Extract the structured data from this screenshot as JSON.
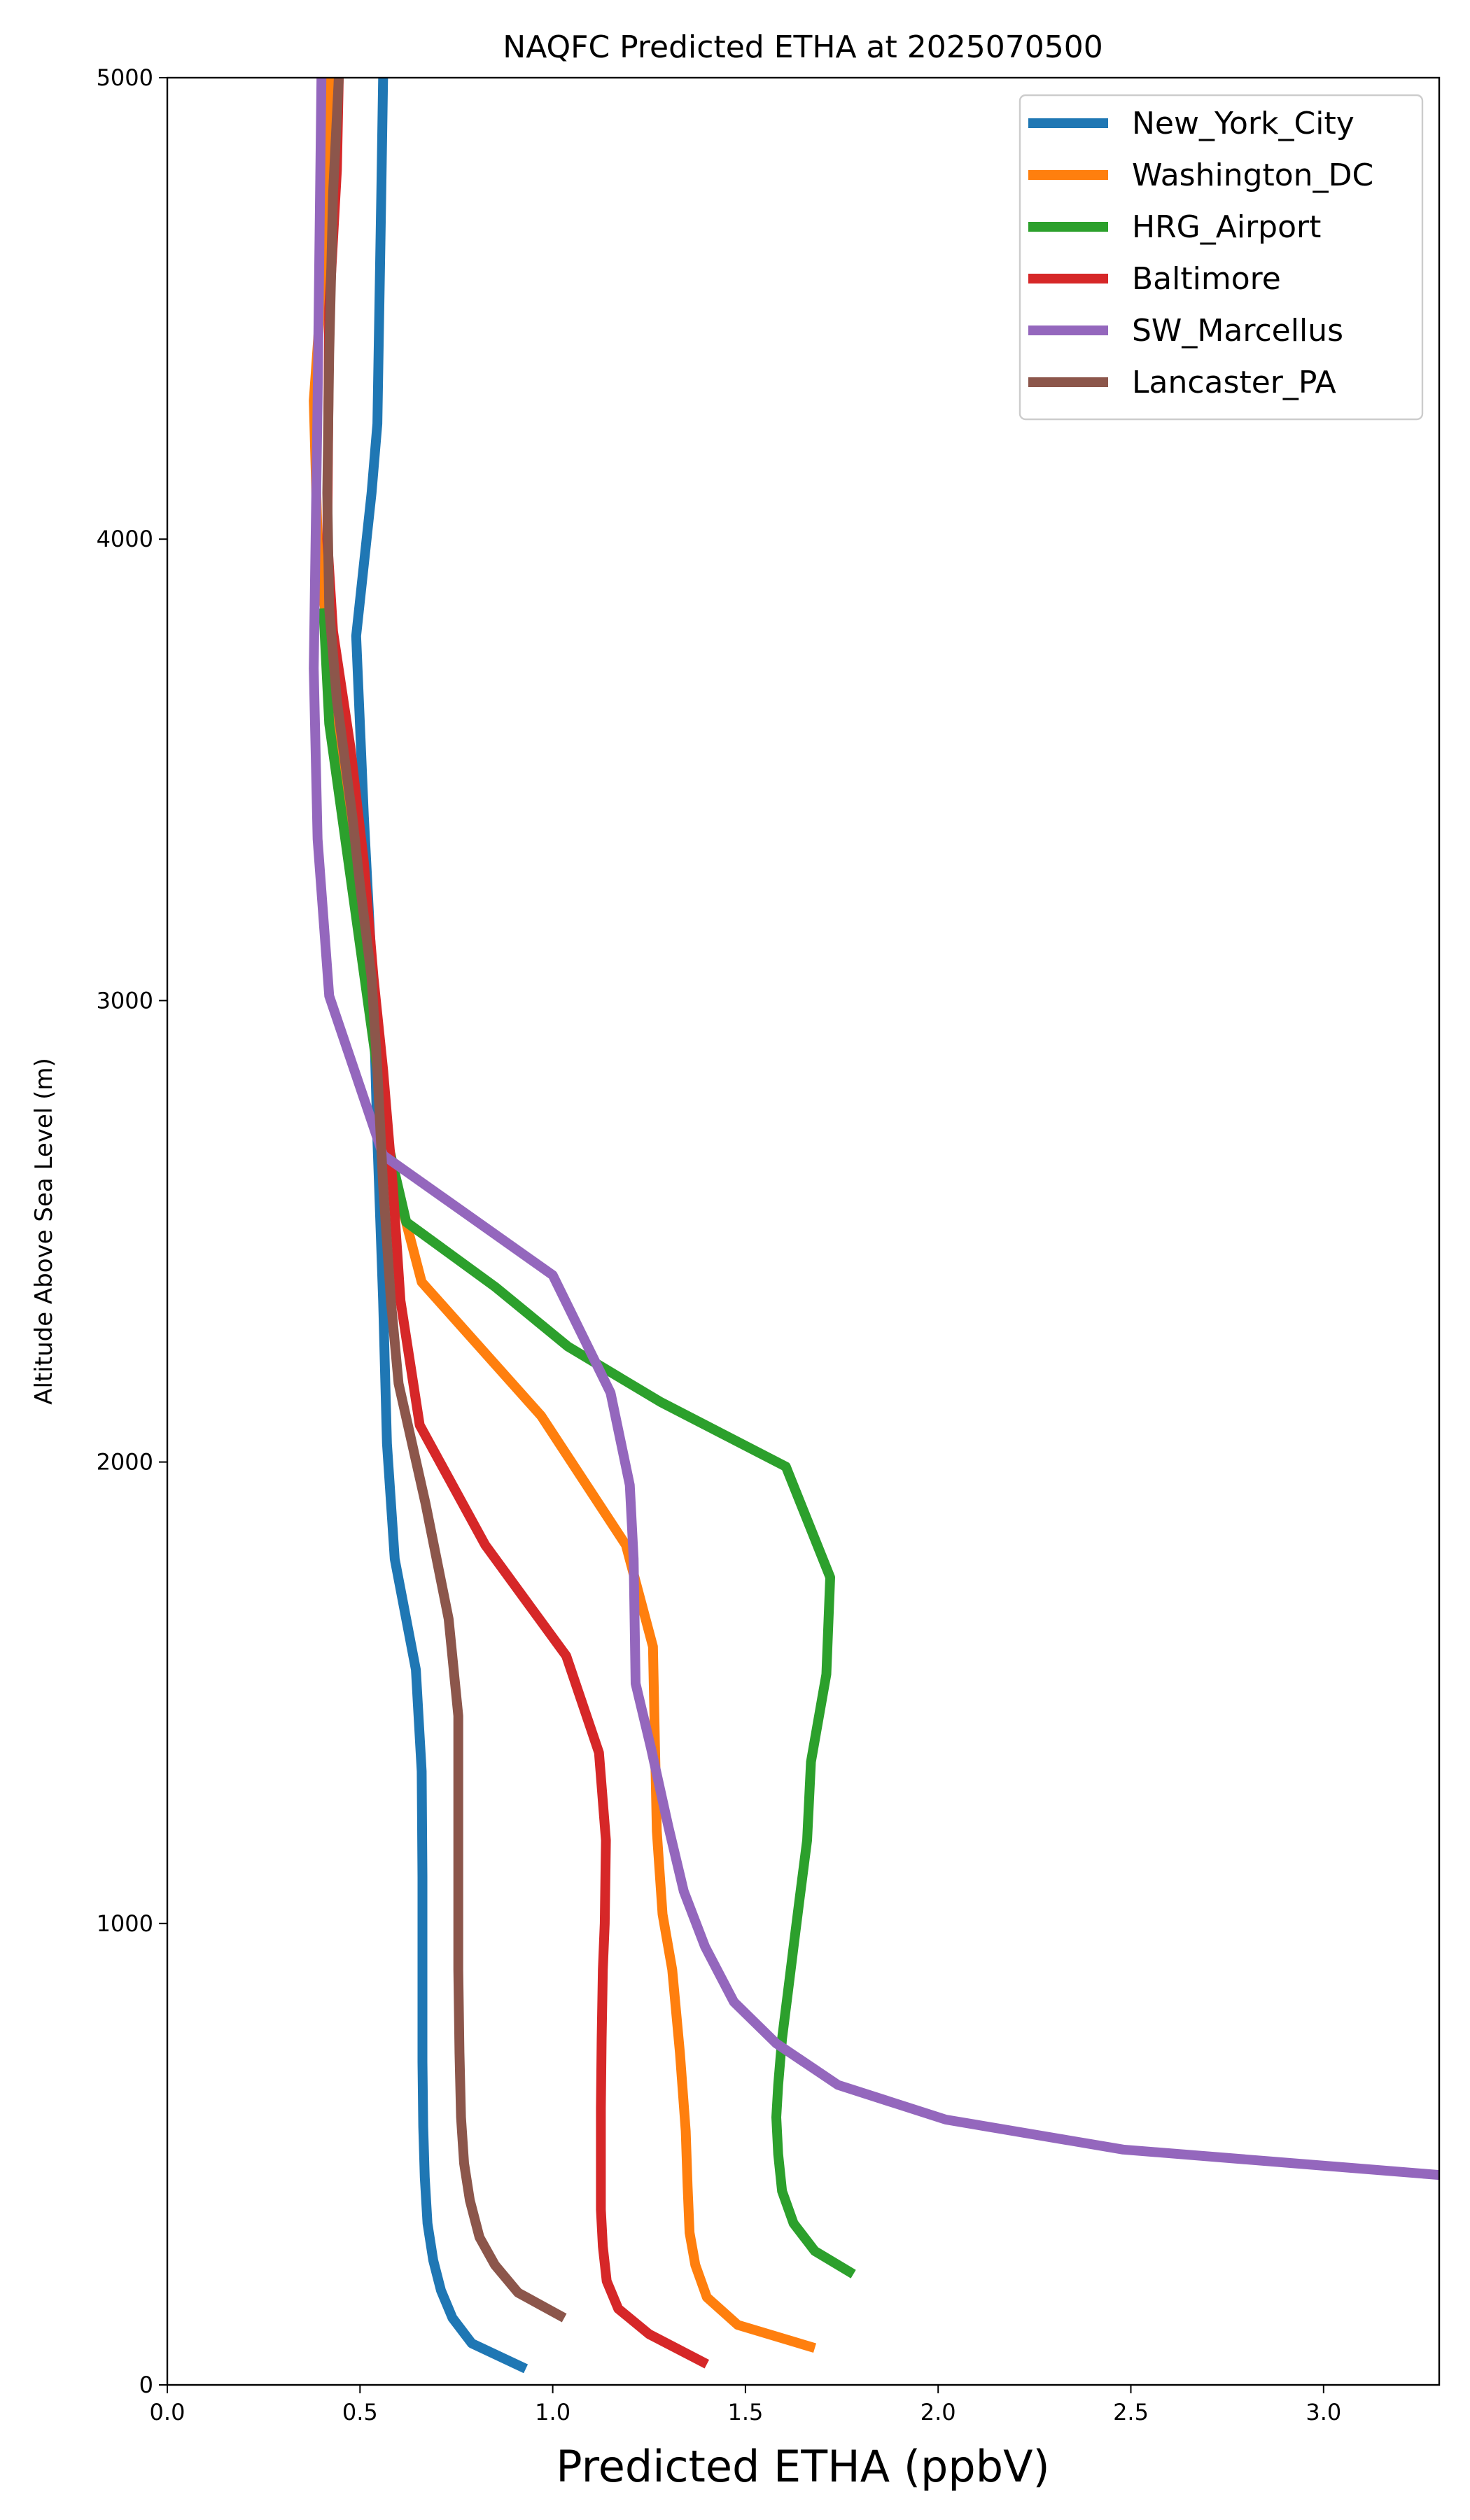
{
  "chart_data": {
    "type": "line",
    "title": "NAQFC Predicted ETHA at 2025070500",
    "xlabel": "Predicted ETHA (ppbV)",
    "ylabel": "Altitude Above Sea Level (m)",
    "xlim": [
      0,
      3.3
    ],
    "ylim": [
      0,
      5000
    ],
    "xticks": [
      "0.0",
      "0.5",
      "1.0",
      "1.5",
      "2.0",
      "2.5",
      "3.0"
    ],
    "yticks": [
      "0",
      "1000",
      "2000",
      "3000",
      "4000",
      "5000"
    ],
    "xtick_values": [
      0,
      0.5,
      1.0,
      1.5,
      2.0,
      2.5,
      3.0
    ],
    "ytick_values": [
      0,
      1000,
      2000,
      3000,
      4000,
      5000
    ],
    "legend_position": "top-right",
    "grid": false,
    "series": [
      {
        "name": "New_York_City",
        "color": "#1f77b4",
        "points": [
          [
            0.93,
            35
          ],
          [
            0.79,
            90
          ],
          [
            0.74,
            145
          ],
          [
            0.71,
            205
          ],
          [
            0.69,
            270
          ],
          [
            0.675,
            350
          ],
          [
            0.668,
            450
          ],
          [
            0.664,
            560
          ],
          [
            0.662,
            700
          ],
          [
            0.662,
            900
          ],
          [
            0.662,
            1100
          ],
          [
            0.66,
            1330
          ],
          [
            0.645,
            1550
          ],
          [
            0.59,
            1790
          ],
          [
            0.57,
            2040
          ],
          [
            0.56,
            2350
          ],
          [
            0.545,
            2700
          ],
          [
            0.535,
            3000
          ],
          [
            0.51,
            3400
          ],
          [
            0.49,
            3790
          ],
          [
            0.53,
            4100
          ],
          [
            0.545,
            4250
          ],
          [
            0.555,
            4740
          ],
          [
            0.56,
            5000
          ]
        ]
      },
      {
        "name": "Washington_DC",
        "color": "#ff7f0e",
        "points": [
          [
            1.68,
            80
          ],
          [
            1.48,
            130
          ],
          [
            1.4,
            190
          ],
          [
            1.37,
            260
          ],
          [
            1.355,
            330
          ],
          [
            1.35,
            430
          ],
          [
            1.345,
            550
          ],
          [
            1.33,
            720
          ],
          [
            1.31,
            900
          ],
          [
            1.285,
            1020
          ],
          [
            1.27,
            1200
          ],
          [
            1.265,
            1400
          ],
          [
            1.26,
            1600
          ],
          [
            1.19,
            1820
          ],
          [
            0.97,
            2100
          ],
          [
            0.66,
            2390
          ],
          [
            0.61,
            2550
          ],
          [
            0.565,
            2720
          ],
          [
            0.545,
            2900
          ],
          [
            0.52,
            3050
          ],
          [
            0.48,
            3300
          ],
          [
            0.44,
            3600
          ],
          [
            0.39,
            4000
          ],
          [
            0.38,
            4300
          ],
          [
            0.41,
            4650
          ],
          [
            0.425,
            5000
          ]
        ]
      },
      {
        "name": "HRG_Airport",
        "color": "#2ca02c",
        "points": [
          [
            1.78,
            240
          ],
          [
            1.68,
            290
          ],
          [
            1.625,
            350
          ],
          [
            1.595,
            420
          ],
          [
            1.585,
            500
          ],
          [
            1.58,
            580
          ],
          [
            1.585,
            650
          ],
          [
            1.595,
            750
          ],
          [
            1.61,
            850
          ],
          [
            1.625,
            950
          ],
          [
            1.64,
            1050
          ],
          [
            1.66,
            1180
          ],
          [
            1.67,
            1350
          ],
          [
            1.71,
            1540
          ],
          [
            1.72,
            1750
          ],
          [
            1.605,
            1990
          ],
          [
            1.28,
            2130
          ],
          [
            1.04,
            2250
          ],
          [
            0.85,
            2380
          ],
          [
            0.62,
            2520
          ],
          [
            0.57,
            2700
          ],
          [
            0.52,
            3000
          ],
          [
            0.47,
            3300
          ],
          [
            0.42,
            3600
          ],
          [
            0.405,
            3850
          ]
        ]
      },
      {
        "name": "Baltimore",
        "color": "#d62728",
        "points": [
          [
            1.4,
            45
          ],
          [
            1.25,
            110
          ],
          [
            1.17,
            165
          ],
          [
            1.14,
            225
          ],
          [
            1.13,
            300
          ],
          [
            1.125,
            380
          ],
          [
            1.125,
            480
          ],
          [
            1.125,
            600
          ],
          [
            1.127,
            750
          ],
          [
            1.13,
            900
          ],
          [
            1.135,
            1000
          ],
          [
            1.138,
            1180
          ],
          [
            1.12,
            1370
          ],
          [
            1.035,
            1580
          ],
          [
            0.825,
            1820
          ],
          [
            0.655,
            2080
          ],
          [
            0.605,
            2350
          ],
          [
            0.585,
            2600
          ],
          [
            0.56,
            2850
          ],
          [
            0.535,
            3050
          ],
          [
            0.51,
            3300
          ],
          [
            0.475,
            3550
          ],
          [
            0.43,
            3800
          ],
          [
            0.415,
            4000
          ],
          [
            0.42,
            4500
          ],
          [
            0.44,
            4800
          ],
          [
            0.445,
            5000
          ]
        ]
      },
      {
        "name": "SW_Marcellus",
        "color": "#9467bd",
        "points": [
          [
            3.3,
            455
          ],
          [
            2.48,
            510
          ],
          [
            2.02,
            575
          ],
          [
            1.74,
            650
          ],
          [
            1.58,
            740
          ],
          [
            1.47,
            830
          ],
          [
            1.395,
            950
          ],
          [
            1.34,
            1070
          ],
          [
            1.3,
            1210
          ],
          [
            1.255,
            1380
          ],
          [
            1.215,
            1520
          ],
          [
            1.21,
            1790
          ],
          [
            1.2,
            1950
          ],
          [
            1.15,
            2150
          ],
          [
            1.0,
            2405
          ],
          [
            0.56,
            2665
          ],
          [
            0.42,
            3010
          ],
          [
            0.39,
            3350
          ],
          [
            0.38,
            3720
          ],
          [
            0.39,
            4300
          ],
          [
            0.4,
            5000
          ]
        ]
      },
      {
        "name": "Lancaster_PA",
        "color": "#8c564b",
        "points": [
          [
            1.03,
            145
          ],
          [
            0.91,
            200
          ],
          [
            0.85,
            260
          ],
          [
            0.81,
            320
          ],
          [
            0.785,
            400
          ],
          [
            0.77,
            480
          ],
          [
            0.762,
            580
          ],
          [
            0.758,
            720
          ],
          [
            0.755,
            900
          ],
          [
            0.755,
            1100
          ],
          [
            0.755,
            1300
          ],
          [
            0.755,
            1450
          ],
          [
            0.73,
            1660
          ],
          [
            0.67,
            1910
          ],
          [
            0.6,
            2170
          ],
          [
            0.58,
            2350
          ],
          [
            0.56,
            2600
          ],
          [
            0.545,
            2850
          ],
          [
            0.53,
            3050
          ],
          [
            0.5,
            3250
          ],
          [
            0.48,
            3400
          ],
          [
            0.44,
            3650
          ],
          [
            0.42,
            3850
          ],
          [
            0.415,
            4100
          ],
          [
            0.42,
            4400
          ],
          [
            0.43,
            4750
          ],
          [
            0.445,
            5000
          ]
        ]
      }
    ]
  }
}
